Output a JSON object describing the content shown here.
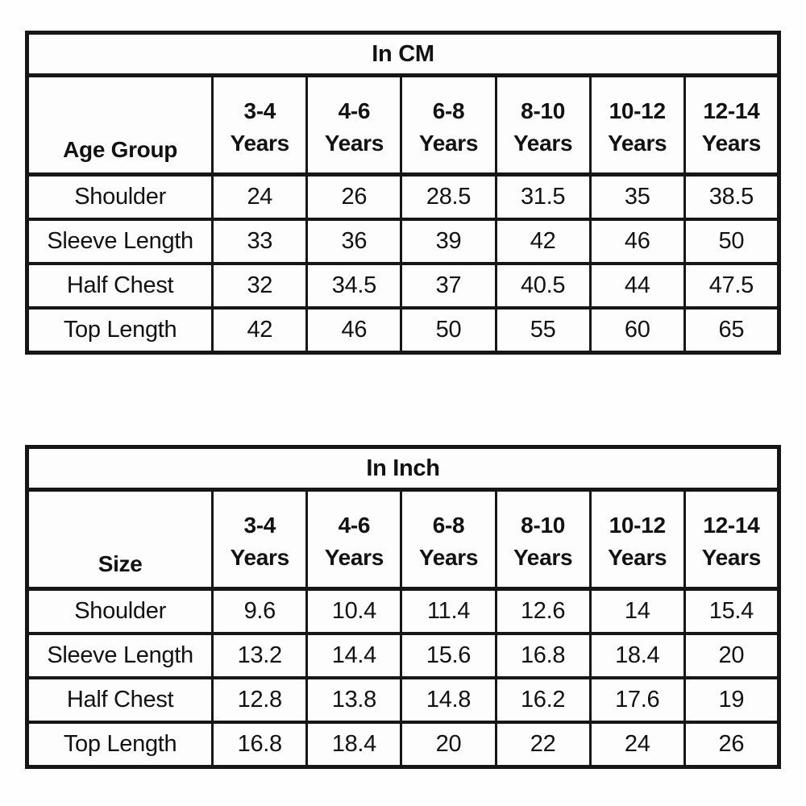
{
  "accent_colors": {
    "border": "#161616",
    "background": "#fefefe",
    "text": "#121212"
  },
  "chart_data": [
    {
      "type": "table",
      "title": "In CM",
      "corner_label": "Age Group",
      "columns": [
        {
          "range": "3-4",
          "unit": "Years"
        },
        {
          "range": "4-6",
          "unit": "Years"
        },
        {
          "range": "6-8",
          "unit": "Years"
        },
        {
          "range": "8-10",
          "unit": "Years"
        },
        {
          "range": "10-12",
          "unit": "Years"
        },
        {
          "range": "12-14",
          "unit": "Years"
        }
      ],
      "rows": [
        {
          "label": "Shoulder",
          "values": [
            "24",
            "26",
            "28.5",
            "31.5",
            "35",
            "38.5"
          ]
        },
        {
          "label": "Sleeve Length",
          "values": [
            "33",
            "36",
            "39",
            "42",
            "46",
            "50"
          ]
        },
        {
          "label": "Half Chest",
          "values": [
            "32",
            "34.5",
            "37",
            "40.5",
            "44",
            "47.5"
          ]
        },
        {
          "label": "Top Length",
          "values": [
            "42",
            "46",
            "50",
            "55",
            "60",
            "65"
          ]
        }
      ]
    },
    {
      "type": "table",
      "title": "In Inch",
      "corner_label": "Size",
      "columns": [
        {
          "range": "3-4",
          "unit": "Years"
        },
        {
          "range": "4-6",
          "unit": "Years"
        },
        {
          "range": "6-8",
          "unit": "Years"
        },
        {
          "range": "8-10",
          "unit": "Years"
        },
        {
          "range": "10-12",
          "unit": "Years"
        },
        {
          "range": "12-14",
          "unit": "Years"
        }
      ],
      "rows": [
        {
          "label": "Shoulder",
          "values": [
            "9.6",
            "10.4",
            "11.4",
            "12.6",
            "14",
            "15.4"
          ]
        },
        {
          "label": "Sleeve Length",
          "values": [
            "13.2",
            "14.4",
            "15.6",
            "16.8",
            "18.4",
            "20"
          ]
        },
        {
          "label": "Half Chest",
          "values": [
            "12.8",
            "13.8",
            "14.8",
            "16.2",
            "17.6",
            "19"
          ]
        },
        {
          "label": "Top Length",
          "values": [
            "16.8",
            "18.4",
            "20",
            "22",
            "24",
            "26"
          ]
        }
      ]
    }
  ]
}
